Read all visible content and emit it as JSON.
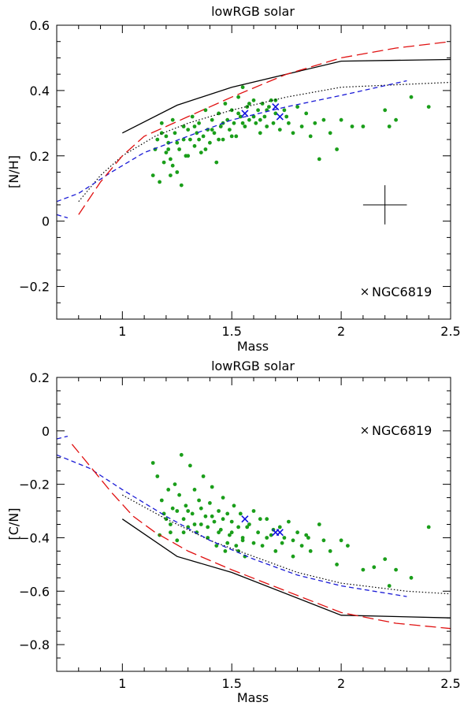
{
  "chart_data": [
    {
      "type": "scatter",
      "title": "lowRGB solar",
      "xlabel": "Mass",
      "ylabel": "[N/H]",
      "xlim": [
        0.7,
        2.5
      ],
      "ylim": [
        -0.3,
        0.6
      ],
      "x_ticks": [
        "1",
        "1.5",
        "2",
        "2.5"
      ],
      "x_tick_values": [
        1,
        1.5,
        2,
        2.5
      ],
      "y_ticks": [
        "−0.2",
        "0",
        "0.2",
        "0.4",
        "0.6"
      ],
      "y_tick_values": [
        -0.2,
        0,
        0.2,
        0.4,
        0.6
      ],
      "legend": {
        "label": "NGC6819",
        "marker": "×",
        "color": "#1010dd",
        "position": "bottom-right"
      },
      "errorbar": {
        "x": 2.2,
        "y": 0.05,
        "dx": 0.1,
        "dy": 0.06
      },
      "curves": [
        {
          "style": "solid",
          "color": "#000000",
          "points": [
            [
              1,
              0.27
            ],
            [
              1.25,
              0.355
            ],
            [
              1.5,
              0.41
            ],
            [
              2,
              0.49
            ],
            [
              2.5,
              0.495
            ]
          ]
        },
        {
          "style": "dotted",
          "color": "#000000",
          "points": [
            [
              0.8,
              0.06
            ],
            [
              0.9,
              0.14
            ],
            [
              1,
              0.2
            ],
            [
              1.15,
              0.26
            ],
            [
              1.3,
              0.3
            ],
            [
              1.5,
              0.34
            ],
            [
              1.75,
              0.38
            ],
            [
              2,
              0.41
            ],
            [
              2.5,
              0.425
            ]
          ]
        },
        {
          "style": "short-dash",
          "color": "#1a1ad6",
          "points": [
            [
              0.7,
              0.06
            ],
            [
              0.8,
              0.085
            ],
            [
              0.95,
              0.15
            ],
            [
              1.1,
              0.21
            ],
            [
              1.3,
              0.26
            ],
            [
              1.5,
              0.31
            ],
            [
              1.75,
              0.35
            ],
            [
              2,
              0.385
            ],
            [
              2.3,
              0.43
            ]
          ]
        },
        {
          "style": "short-dash",
          "color": "#1a1ad6",
          "points": [
            [
              0.7,
              0.02
            ],
            [
              0.75,
              0.01
            ]
          ]
        },
        {
          "style": "long-dash",
          "color": "#e01010",
          "points": [
            [
              0.8,
              0.02
            ],
            [
              0.9,
              0.12
            ],
            [
              1,
              0.2
            ],
            [
              1.1,
              0.26
            ],
            [
              1.2,
              0.29
            ],
            [
              1.3,
              0.32
            ],
            [
              1.5,
              0.38
            ],
            [
              1.75,
              0.45
            ],
            [
              2,
              0.5
            ],
            [
              2.25,
              0.53
            ],
            [
              2.5,
              0.55
            ]
          ]
        }
      ],
      "stars": [
        [
          1.18,
          0.3
        ],
        [
          1.2,
          0.26
        ],
        [
          1.21,
          0.22
        ],
        [
          1.22,
          0.19
        ],
        [
          1.23,
          0.31
        ],
        [
          1.24,
          0.27
        ],
        [
          1.25,
          0.24
        ],
        [
          1.25,
          0.15
        ],
        [
          1.27,
          0.11
        ],
        [
          1.28,
          0.29
        ],
        [
          1.29,
          0.2
        ],
        [
          1.3,
          0.28
        ],
        [
          1.31,
          0.25
        ],
        [
          1.32,
          0.32
        ],
        [
          1.33,
          0.23
        ],
        [
          1.34,
          0.27
        ],
        [
          1.35,
          0.3
        ],
        [
          1.36,
          0.21
        ],
        [
          1.37,
          0.26
        ],
        [
          1.38,
          0.34
        ],
        [
          1.39,
          0.28
        ],
        [
          1.4,
          0.24
        ],
        [
          1.41,
          0.31
        ],
        [
          1.42,
          0.27
        ],
        [
          1.43,
          0.18
        ],
        [
          1.44,
          0.33
        ],
        [
          1.45,
          0.29
        ],
        [
          1.46,
          0.25
        ],
        [
          1.47,
          0.36
        ],
        [
          1.48,
          0.31
        ],
        [
          1.49,
          0.28
        ],
        [
          1.5,
          0.34
        ],
        [
          1.51,
          0.3
        ],
        [
          1.52,
          0.26
        ],
        [
          1.53,
          0.38
        ],
        [
          1.54,
          0.32
        ],
        [
          1.55,
          0.41
        ],
        [
          1.56,
          0.29
        ],
        [
          1.57,
          0.35
        ],
        [
          1.58,
          0.31
        ],
        [
          1.6,
          0.37
        ],
        [
          1.61,
          0.3
        ],
        [
          1.62,
          0.34
        ],
        [
          1.63,
          0.27
        ],
        [
          1.64,
          0.36
        ],
        [
          1.65,
          0.32
        ],
        [
          1.66,
          0.29
        ],
        [
          1.67,
          0.35
        ],
        [
          1.68,
          0.37
        ],
        [
          1.69,
          0.3
        ],
        [
          1.7,
          0.33
        ],
        [
          1.72,
          0.28
        ],
        [
          1.74,
          0.34
        ],
        [
          1.76,
          0.3
        ],
        [
          1.78,
          0.27
        ],
        [
          1.8,
          0.35
        ],
        [
          1.82,
          0.29
        ],
        [
          1.84,
          0.33
        ],
        [
          1.86,
          0.26
        ],
        [
          1.88,
          0.3
        ],
        [
          1.9,
          0.19
        ],
        [
          1.92,
          0.31
        ],
        [
          1.95,
          0.27
        ],
        [
          1.98,
          0.22
        ],
        [
          2.0,
          0.31
        ],
        [
          2.05,
          0.29
        ],
        [
          2.1,
          0.29
        ],
        [
          2.2,
          0.34
        ],
        [
          2.22,
          0.29
        ],
        [
          2.25,
          0.31
        ],
        [
          2.32,
          0.38
        ],
        [
          2.4,
          0.35
        ],
        [
          1.14,
          0.14
        ],
        [
          1.15,
          0.22
        ],
        [
          1.16,
          0.25
        ],
        [
          1.17,
          0.12
        ],
        [
          1.18,
          0.27
        ],
        [
          1.19,
          0.18
        ],
        [
          1.2,
          0.21
        ],
        [
          1.21,
          0.24
        ],
        [
          1.22,
          0.14
        ],
        [
          1.23,
          0.17
        ],
        [
          1.26,
          0.22
        ],
        [
          1.28,
          0.25
        ],
        [
          1.3,
          0.2
        ],
        [
          1.33,
          0.29
        ],
        [
          1.35,
          0.25
        ],
        [
          1.38,
          0.22
        ],
        [
          1.41,
          0.28
        ],
        [
          1.44,
          0.25
        ],
        [
          1.46,
          0.3
        ],
        [
          1.5,
          0.26
        ],
        [
          1.53,
          0.33
        ],
        [
          1.55,
          0.3
        ],
        [
          1.58,
          0.36
        ],
        [
          1.6,
          0.32
        ],
        [
          1.63,
          0.31
        ],
        [
          1.66,
          0.34
        ],
        [
          1.7,
          0.37
        ],
        [
          1.75,
          0.32
        ]
      ],
      "ngc6819": [
        [
          1.56,
          0.33
        ],
        [
          1.7,
          0.35
        ],
        [
          1.72,
          0.32
        ]
      ]
    },
    {
      "type": "scatter",
      "title": "lowRGB solar",
      "xlabel": "Mass",
      "ylabel": "[C/N]",
      "xlim": [
        0.7,
        2.5
      ],
      "ylim": [
        -0.9,
        0.2
      ],
      "x_ticks": [
        "1",
        "1.5",
        "2",
        "2.5"
      ],
      "x_tick_values": [
        1,
        1.5,
        2,
        2.5
      ],
      "y_ticks": [
        "−0.8",
        "−0.6",
        "−0.4",
        "−0.2",
        "0",
        "0.2"
      ],
      "y_tick_values": [
        -0.8,
        -0.6,
        -0.4,
        -0.2,
        0,
        0.2
      ],
      "legend": {
        "label": "NGC6819",
        "marker": "×",
        "color": "#1010dd",
        "position": "top-right"
      },
      "curves": [
        {
          "style": "solid",
          "color": "#000000",
          "points": [
            [
              1,
              -0.33
            ],
            [
              1.25,
              -0.47
            ],
            [
              1.5,
              -0.53
            ],
            [
              2,
              -0.69
            ],
            [
              2.5,
              -0.7
            ]
          ]
        },
        {
          "style": "dotted",
          "color": "#000000",
          "points": [
            [
              1,
              -0.24
            ],
            [
              1.2,
              -0.33
            ],
            [
              1.4,
              -0.41
            ],
            [
              1.6,
              -0.47
            ],
            [
              1.8,
              -0.53
            ],
            [
              2,
              -0.57
            ],
            [
              2.3,
              -0.6
            ],
            [
              2.5,
              -0.61
            ]
          ]
        },
        {
          "style": "short-dash",
          "color": "#1a1ad6",
          "points": [
            [
              0.7,
              -0.09
            ],
            [
              0.85,
              -0.14
            ],
            [
              1,
              -0.22
            ],
            [
              1.2,
              -0.32
            ],
            [
              1.4,
              -0.41
            ],
            [
              1.6,
              -0.48
            ],
            [
              1.8,
              -0.54
            ],
            [
              2,
              -0.58
            ],
            [
              2.3,
              -0.62
            ]
          ]
        },
        {
          "style": "short-dash",
          "color": "#1a1ad6",
          "points": [
            [
              0.7,
              -0.03
            ],
            [
              0.75,
              -0.02
            ]
          ]
        },
        {
          "style": "long-dash",
          "color": "#e01010",
          "points": [
            [
              0.77,
              -0.05
            ],
            [
              0.85,
              -0.13
            ],
            [
              0.95,
              -0.23
            ],
            [
              1.05,
              -0.32
            ],
            [
              1.15,
              -0.38
            ],
            [
              1.3,
              -0.45
            ],
            [
              1.5,
              -0.52
            ],
            [
              1.75,
              -0.6
            ],
            [
              2,
              -0.68
            ],
            [
              2.25,
              -0.72
            ],
            [
              2.5,
              -0.74
            ]
          ]
        }
      ],
      "stars": [
        [
          1.14,
          -0.12
        ],
        [
          1.16,
          -0.17
        ],
        [
          1.18,
          -0.26
        ],
        [
          1.2,
          -0.33
        ],
        [
          1.21,
          -0.22
        ],
        [
          1.22,
          -0.38
        ],
        [
          1.23,
          -0.29
        ],
        [
          1.24,
          -0.2
        ],
        [
          1.25,
          -0.41
        ],
        [
          1.26,
          -0.24
        ],
        [
          1.27,
          -0.09
        ],
        [
          1.28,
          -0.33
        ],
        [
          1.29,
          -0.28
        ],
        [
          1.3,
          -0.36
        ],
        [
          1.31,
          -0.13
        ],
        [
          1.32,
          -0.31
        ],
        [
          1.33,
          -0.22
        ],
        [
          1.34,
          -0.38
        ],
        [
          1.35,
          -0.26
        ],
        [
          1.36,
          -0.35
        ],
        [
          1.37,
          -0.17
        ],
        [
          1.38,
          -0.32
        ],
        [
          1.39,
          -0.4
        ],
        [
          1.4,
          -0.27
        ],
        [
          1.41,
          -0.21
        ],
        [
          1.42,
          -0.34
        ],
        [
          1.43,
          -0.43
        ],
        [
          1.44,
          -0.3
        ],
        [
          1.45,
          -0.37
        ],
        [
          1.46,
          -0.25
        ],
        [
          1.47,
          -0.45
        ],
        [
          1.48,
          -0.31
        ],
        [
          1.49,
          -0.39
        ],
        [
          1.5,
          -0.34
        ],
        [
          1.51,
          -0.28
        ],
        [
          1.52,
          -0.43
        ],
        [
          1.53,
          -0.36
        ],
        [
          1.54,
          -0.31
        ],
        [
          1.55,
          -0.4
        ],
        [
          1.56,
          -0.47
        ],
        [
          1.58,
          -0.35
        ],
        [
          1.6,
          -0.3
        ],
        [
          1.62,
          -0.38
        ],
        [
          1.64,
          -0.43
        ],
        [
          1.66,
          -0.33
        ],
        [
          1.68,
          -0.39
        ],
        [
          1.7,
          -0.45
        ],
        [
          1.72,
          -0.36
        ],
        [
          1.74,
          -0.4
        ],
        [
          1.76,
          -0.34
        ],
        [
          1.78,
          -0.47
        ],
        [
          1.8,
          -0.38
        ],
        [
          1.82,
          -0.43
        ],
        [
          1.84,
          -0.39
        ],
        [
          1.86,
          -0.45
        ],
        [
          1.9,
          -0.35
        ],
        [
          1.92,
          -0.41
        ],
        [
          1.95,
          -0.45
        ],
        [
          1.98,
          -0.5
        ],
        [
          2.0,
          -0.41
        ],
        [
          2.03,
          -0.43
        ],
        [
          2.1,
          -0.52
        ],
        [
          2.15,
          -0.51
        ],
        [
          2.2,
          -0.48
        ],
        [
          2.22,
          -0.58
        ],
        [
          2.25,
          -0.52
        ],
        [
          2.32,
          -0.55
        ],
        [
          2.4,
          -0.36
        ],
        [
          1.17,
          -0.39
        ],
        [
          1.19,
          -0.31
        ],
        [
          1.22,
          -0.35
        ],
        [
          1.25,
          -0.3
        ],
        [
          1.28,
          -0.38
        ],
        [
          1.3,
          -0.3
        ],
        [
          1.33,
          -0.35
        ],
        [
          1.36,
          -0.29
        ],
        [
          1.39,
          -0.36
        ],
        [
          1.41,
          -0.32
        ],
        [
          1.44,
          -0.38
        ],
        [
          1.46,
          -0.33
        ],
        [
          1.48,
          -0.42
        ],
        [
          1.5,
          -0.38
        ],
        [
          1.53,
          -0.45
        ],
        [
          1.55,
          -0.41
        ],
        [
          1.57,
          -0.36
        ],
        [
          1.6,
          -0.42
        ],
        [
          1.63,
          -0.33
        ],
        [
          1.66,
          -0.4
        ],
        [
          1.69,
          -0.37
        ],
        [
          1.73,
          -0.42
        ],
        [
          1.78,
          -0.41
        ],
        [
          1.85,
          -0.4
        ]
      ],
      "ngc6819": [
        [
          1.56,
          -0.33
        ],
        [
          1.7,
          -0.38
        ],
        [
          1.72,
          -0.38
        ]
      ]
    }
  ]
}
